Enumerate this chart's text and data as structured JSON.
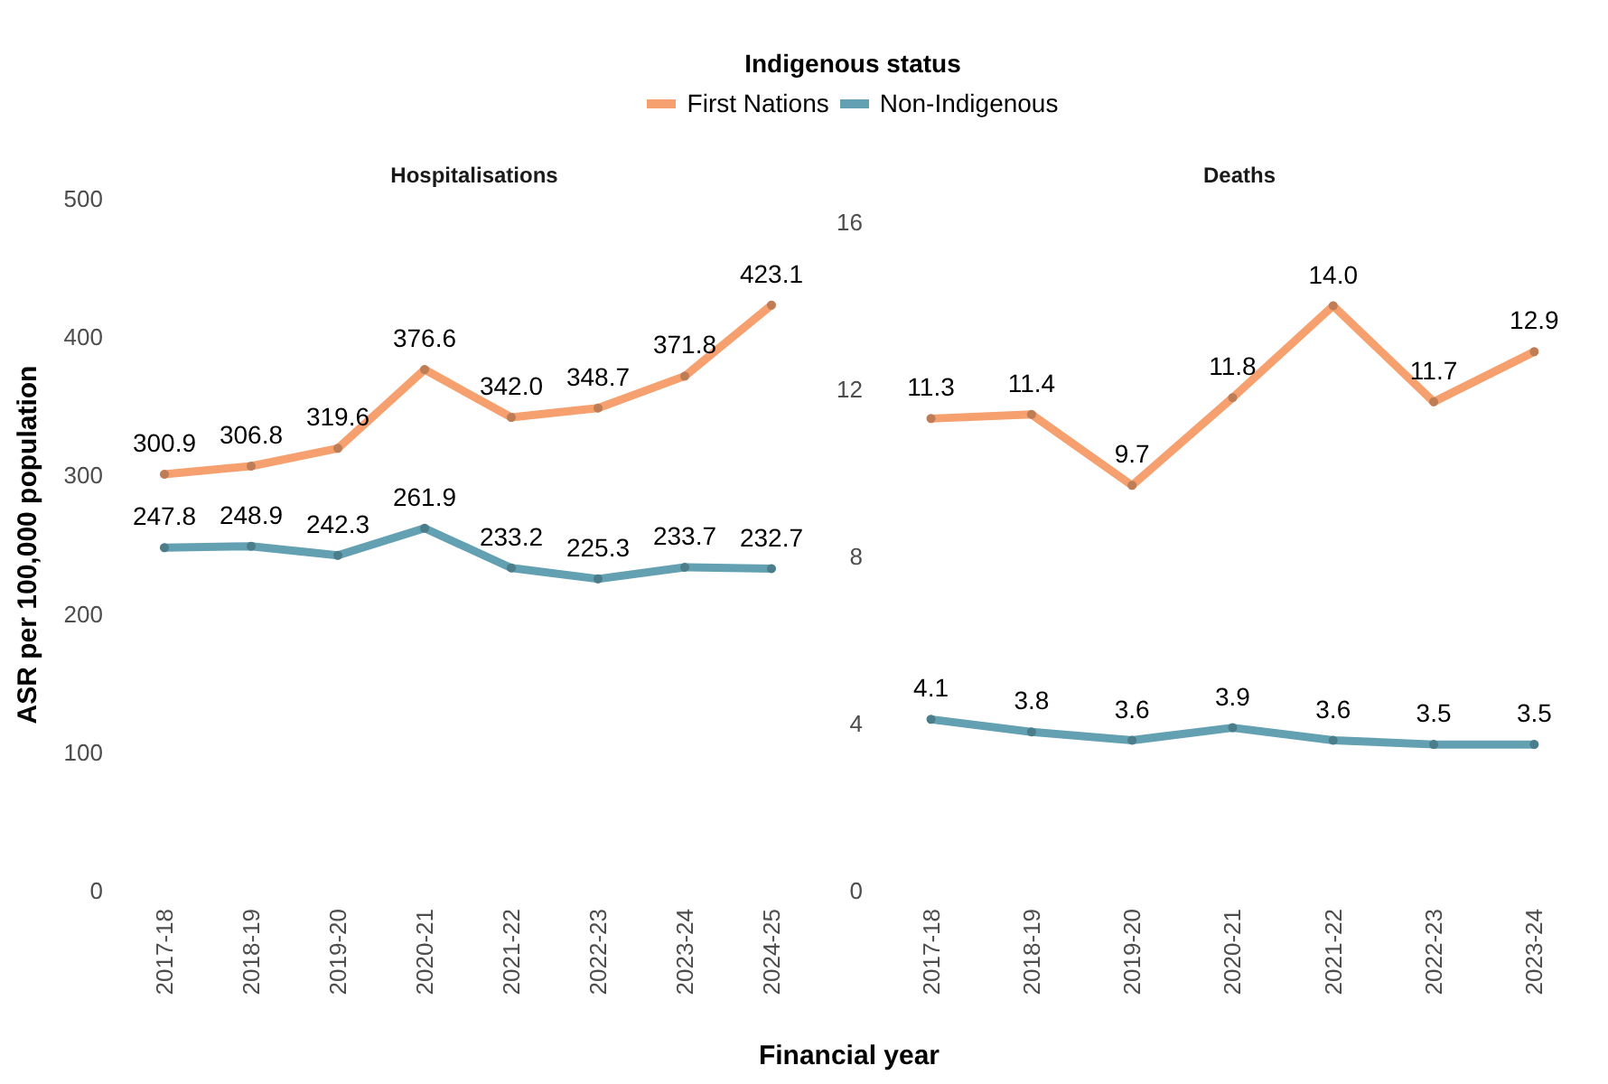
{
  "chart_data": [
    {
      "type": "line",
      "title": "Hospitalisations",
      "xlabel": "Financial year",
      "ylabel": "ASR per 100,000 population",
      "legend_title": "Indigenous status",
      "legend": "top",
      "marker": "circle",
      "categories": [
        "2017-18",
        "2018-19",
        "2019-20",
        "2020-21",
        "2021-22",
        "2022-23",
        "2023-24",
        "2024-25"
      ],
      "ylim": [
        0,
        500
      ],
      "yticks": [
        0,
        100,
        200,
        300,
        400,
        500
      ],
      "series": [
        {
          "name": "First Nations",
          "color": "#f5a06e",
          "values": [
            300.9,
            306.8,
            319.6,
            376.6,
            342.0,
            348.7,
            371.8,
            423.1
          ],
          "value_labels": [
            "300.9",
            "306.8",
            "319.6",
            "376.6",
            "342.0",
            "348.7",
            "371.8",
            "423.1"
          ]
        },
        {
          "name": "Non-Indigenous",
          "color": "#62a0b2",
          "values": [
            247.8,
            248.9,
            242.3,
            261.9,
            233.2,
            225.3,
            233.7,
            232.7
          ],
          "value_labels": [
            "247.8",
            "248.9",
            "242.3",
            "261.9",
            "233.2",
            "225.3",
            "233.7",
            "232.7"
          ]
        }
      ]
    },
    {
      "type": "line",
      "title": "Deaths",
      "marker": "circle",
      "categories": [
        "2017-18",
        "2018-19",
        "2019-20",
        "2020-21",
        "2021-22",
        "2022-23",
        "2023-24"
      ],
      "ylim": [
        0,
        16
      ],
      "yticks": [
        0,
        4,
        8,
        12,
        16
      ],
      "series": [
        {
          "color": "#f5a06e",
          "values": [
            11.3,
            11.4,
            9.7,
            11.8,
            14.0,
            11.7,
            12.9
          ],
          "value_labels": [
            "11.3",
            "11.4",
            "9.7",
            "11.8",
            "14.0",
            "11.7",
            "12.9"
          ]
        },
        {
          "color": "#62a0b2",
          "values": [
            4.1,
            3.8,
            3.6,
            3.9,
            3.6,
            3.5,
            3.5
          ],
          "value_labels": [
            "4.1",
            "3.8",
            "3.6",
            "3.9",
            "3.6",
            "3.5",
            "3.5"
          ]
        }
      ]
    }
  ]
}
